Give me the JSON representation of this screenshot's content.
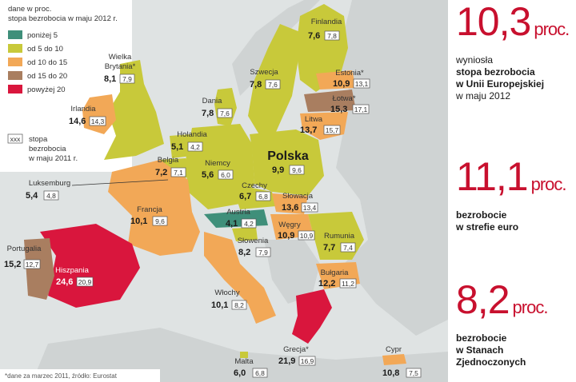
{
  "legend": {
    "header1": "dane w proc.",
    "header2": "stopa bezrobocia w maju 2012 r.",
    "items": [
      {
        "label": "poniżej 5",
        "color": "#3f8f7a"
      },
      {
        "label": "od 5 do 10",
        "color": "#c8c93a"
      },
      {
        "label": "od 10 do 15",
        "color": "#f2a857"
      },
      {
        "label": "od 15 do 20",
        "color": "#a97e60"
      },
      {
        "label": "powyżej 20",
        "color": "#d9163d"
      }
    ],
    "prev_box": "xxx",
    "prev_line1": "stopa",
    "prev_line2": "bezrobocia",
    "prev_line3": "w maju 2011 r."
  },
  "footnote": "*dane za marzec 2011, źródło: Eurostat",
  "countries": {
    "wielka_brytania": {
      "name1": "Wielka",
      "name2": "Brytania*",
      "value": "8,1",
      "prev": "7,9"
    },
    "irlandia": {
      "name": "Irlandia",
      "value": "14,6",
      "prev": "14,3"
    },
    "finlandia": {
      "name": "Finlandia",
      "value": "7,6",
      "prev": "7,8"
    },
    "szwecja": {
      "name": "Szwecja",
      "value": "7,8",
      "prev": "7,6"
    },
    "estonia": {
      "name": "Estonia*",
      "value": "10,9",
      "prev": "13,1"
    },
    "lotwa": {
      "name": "Łotwa*",
      "value": "15,3",
      "prev": "17,1"
    },
    "litwa": {
      "name": "Litwa",
      "value": "13,7",
      "prev": "15,7"
    },
    "dania": {
      "name": "Dania",
      "value": "7,8",
      "prev": "7,6"
    },
    "holandia": {
      "name": "Holandia",
      "value": "5,1",
      "prev": "4,2"
    },
    "belgia": {
      "name": "Belgia",
      "value": "7,2",
      "prev": "7,1"
    },
    "luksemburg": {
      "name": "Luksemburg",
      "value": "5,4",
      "prev": "4,8"
    },
    "niemcy": {
      "name": "Niemcy",
      "value": "5,6",
      "prev": "6,0"
    },
    "polska": {
      "name": "Polska",
      "value": "9,9",
      "prev": "9,6"
    },
    "czechy": {
      "name": "Czechy",
      "value": "6,7",
      "prev": "6,8"
    },
    "slowacja": {
      "name": "Słowacja",
      "value": "13,6",
      "prev": "13,4"
    },
    "austria": {
      "name": "Austria",
      "value": "4,1",
      "prev": "4,2"
    },
    "wegry": {
      "name": "Węgry",
      "value": "10,9",
      "prev": "10,9"
    },
    "francja": {
      "name": "Francja",
      "value": "10,1",
      "prev": "9,6"
    },
    "slowenia": {
      "name": "Słowenia",
      "value": "8,2",
      "prev": "7,9"
    },
    "rumunia": {
      "name": "Rumunia",
      "value": "7,7",
      "prev": "7,4"
    },
    "portugalia": {
      "name": "Portugalia",
      "value": "15,2",
      "prev": "12,7"
    },
    "hiszpania": {
      "name": "Hiszpania",
      "value": "24,6",
      "prev": "20,9"
    },
    "bulgaria": {
      "name": "Bułgaria",
      "value": "12,2",
      "prev": "11,2"
    },
    "wlochy": {
      "name": "Włochy",
      "value": "10,1",
      "prev": "8,2"
    },
    "malta": {
      "name": "Malta",
      "value": "6,0",
      "prev": "6,8"
    },
    "grecja": {
      "name": "Grecja*",
      "value": "21,9",
      "prev": "16,9"
    },
    "cypr": {
      "name": "Cypr",
      "value": "10,8",
      "prev": "7,5"
    }
  },
  "stats": [
    {
      "number": "10,3",
      "unit": "proc.",
      "line1": "wyniosła",
      "line2": "stopa bezrobocia",
      "line3": "w Unii Europejskiej",
      "line4": "w maju 2012"
    },
    {
      "number": "11,1",
      "unit": "proc.",
      "line1": "bezrobocie",
      "line2": "w strefie euro"
    },
    {
      "number": "8,2",
      "unit": "proc.",
      "line1": "bezrobocie",
      "line2": "w Stanach",
      "line3": "Zjednoczonych"
    }
  ],
  "colors": {
    "sea": "#dfe3e3",
    "non_eu": "#cfd3d3",
    "accent_red": "#c8102e"
  }
}
